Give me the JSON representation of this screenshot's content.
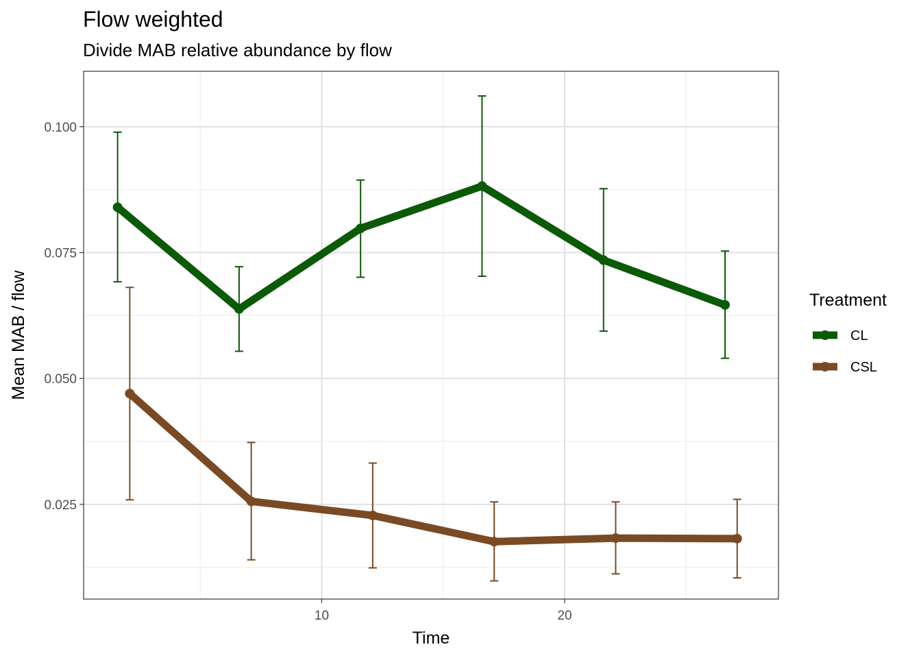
{
  "chart_data": {
    "type": "line",
    "title": "Flow weighted",
    "subtitle": "Divide MAB relative abundance by flow",
    "xlabel": "Time",
    "ylabel": "Mean MAB / flow",
    "xlim": [
      0.2,
      28.8
    ],
    "ylim": [
      0.0062,
      0.111
    ],
    "x_ticks": [
      10,
      20
    ],
    "x_tick_labels": [
      "10",
      "20"
    ],
    "x_minor_ticks": [
      5,
      15,
      25
    ],
    "y_ticks": [
      0.025,
      0.05,
      0.075,
      0.1
    ],
    "y_tick_labels": [
      "0.025",
      "0.050",
      "0.075",
      "0.100"
    ],
    "y_minor_ticks": [
      0.0125,
      0.0375,
      0.0625,
      0.0875
    ],
    "grid": true,
    "legend_position": "right",
    "legend_title": "Treatment",
    "series": [
      {
        "name": "CL",
        "color": "#0b5a06",
        "x": [
          1.6,
          6.6,
          11.6,
          16.6,
          21.6,
          26.6
        ],
        "y": [
          0.084,
          0.0638,
          0.0798,
          0.0882,
          0.0735,
          0.0646
        ],
        "err_low": [
          0.0692,
          0.0554,
          0.0701,
          0.0703,
          0.0594,
          0.054
        ],
        "err_high": [
          0.0989,
          0.0722,
          0.0894,
          0.1061,
          0.0877,
          0.0753
        ]
      },
      {
        "name": "CSL",
        "color": "#7a4a24",
        "x": [
          2.1,
          7.1,
          12.1,
          17.1,
          22.1,
          27.1
        ],
        "y": [
          0.047,
          0.0256,
          0.0228,
          0.0176,
          0.0183,
          0.0182
        ],
        "err_low": [
          0.0259,
          0.014,
          0.0124,
          0.0098,
          0.0112,
          0.0104
        ],
        "err_high": [
          0.0681,
          0.0373,
          0.0332,
          0.0255,
          0.0255,
          0.026
        ]
      }
    ]
  }
}
